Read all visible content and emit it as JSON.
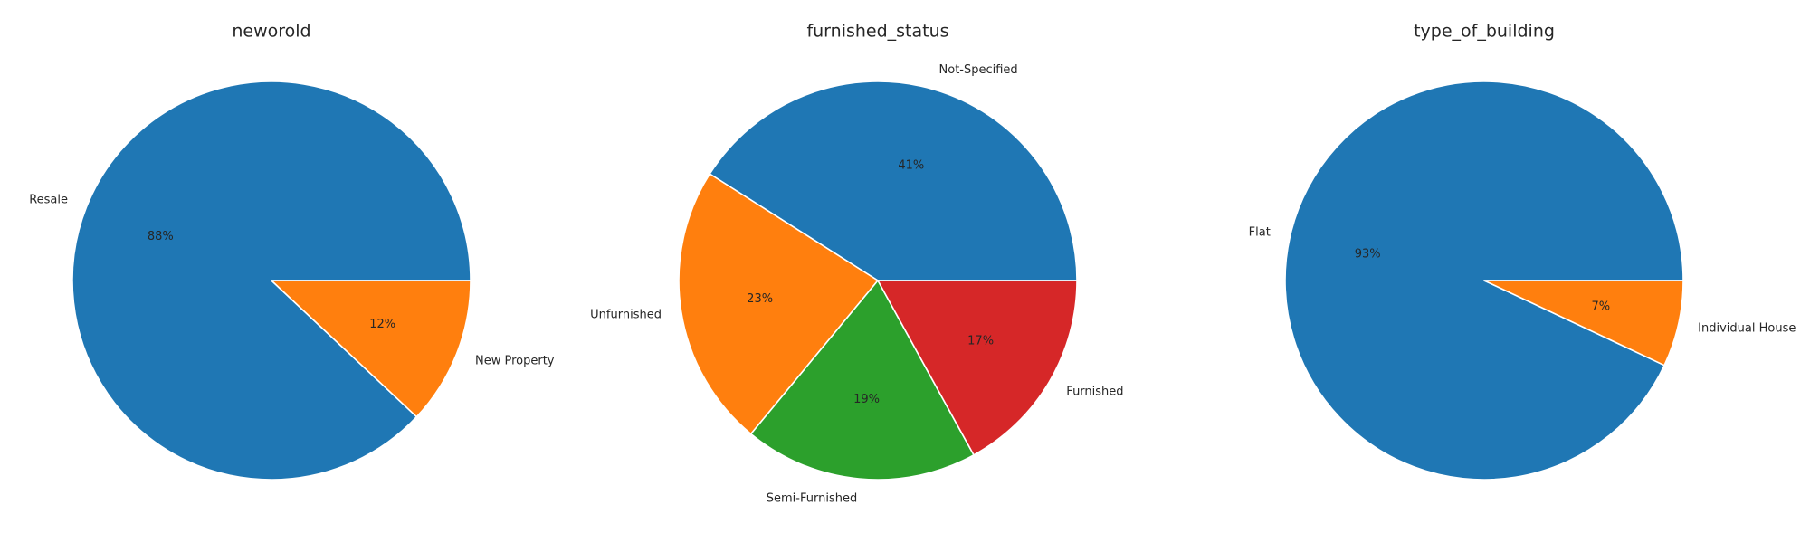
{
  "chart_data": [
    {
      "type": "pie",
      "title": "neworold",
      "categories": [
        "Resale",
        "New Property"
      ],
      "values": [
        88,
        12
      ],
      "value_labels": [
        "88%",
        "12%"
      ],
      "colors": [
        "#1f77b4",
        "#ff7f0e"
      ]
    },
    {
      "type": "pie",
      "title": "furnished_status",
      "categories": [
        "Not-Specified",
        "Unfurnished",
        "Semi-Furnished",
        "Furnished"
      ],
      "values": [
        41,
        23,
        19,
        17
      ],
      "value_labels": [
        "41%",
        "23%",
        "19%",
        "17%"
      ],
      "colors": [
        "#1f77b4",
        "#ff7f0e",
        "#2ca02c",
        "#d62728"
      ]
    },
    {
      "type": "pie",
      "title": "type_of_building",
      "categories": [
        "Flat",
        "Individual House"
      ],
      "values": [
        93,
        7
      ],
      "value_labels": [
        "93%",
        "7%"
      ],
      "colors": [
        "#1f77b4",
        "#ff7f0e"
      ]
    }
  ]
}
